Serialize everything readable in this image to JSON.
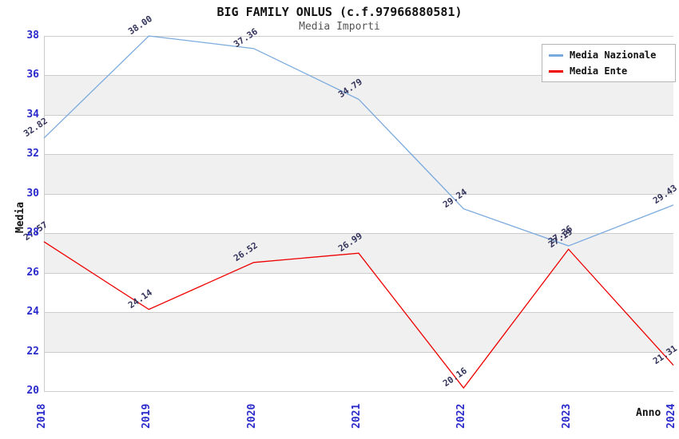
{
  "title": "BIG FAMILY ONLUS (c.f.97966880581)",
  "subtitle": "Media Importi",
  "chart_data": {
    "type": "line",
    "x": [
      2018,
      2019,
      2020,
      2021,
      2022,
      2023,
      2024
    ],
    "series": [
      {
        "name": "Media Nazionale",
        "color": "#79aade",
        "values": [
          32.82,
          38.0,
          37.36,
          34.79,
          29.24,
          27.36,
          29.43
        ]
      },
      {
        "name": "Media Ente",
        "color": "#ee0000",
        "values": [
          27.57,
          24.14,
          26.52,
          26.99,
          20.16,
          27.19,
          21.31
        ]
      }
    ],
    "xlabel": "Anno",
    "ylabel": "Media",
    "ylim": [
      20,
      38
    ],
    "ytick_step": 2,
    "grid": true,
    "legend_position": "top-right",
    "colors": {
      "tick_label": "#2a2acc",
      "point_label": "#33335c",
      "grid_line": "#cccccc",
      "band_gray": "#f0f0f0",
      "band_white": "#ffffff"
    }
  }
}
